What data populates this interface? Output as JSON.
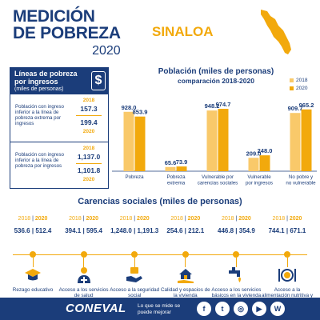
{
  "header": {
    "brand_line1": "MEDICIÓN",
    "brand_line2": "DE POBREZA",
    "brand_year": "2020",
    "state": "SINALOA"
  },
  "poverty_lines": {
    "title": "Líneas de pobreza por ingresos",
    "subtitle": "(miles de personas)",
    "rows": [
      {
        "label": "Población con ingreso inferior a la línea de pobreza extrema por ingresos",
        "year_2018": "2018",
        "value_2018": "157.3",
        "value_2020": "199.4",
        "year_2020": "2020"
      },
      {
        "label": "Población con ingreso inferior a la línea de pobreza por ingresos",
        "year_2018": "2018",
        "value_2018": "1,137.0",
        "value_2020": "1,101.8",
        "year_2020": "2020"
      }
    ]
  },
  "colors": {
    "navy": "#1b3d7a",
    "series_2018": "#f9c96a",
    "series_2020": "#f2a90c"
  },
  "chart_data": {
    "type": "bar",
    "title": "Población (miles de personas)",
    "subtitle": "comparación 2018-2020",
    "categories": [
      "Pobreza",
      "Pobreza extrema",
      "Vulnerable por carencias sociales",
      "Vulnerable por ingresos",
      "No pobre y no vulnerable"
    ],
    "category_lines": [
      [
        "Pobreza"
      ],
      [
        "Pobreza",
        "extrema"
      ],
      [
        "Vulnerable por",
        "carencias sociales"
      ],
      [
        "Vulnerable",
        "por ingresos"
      ],
      [
        "No pobre y",
        "no vulnerable"
      ]
    ],
    "series": [
      {
        "name": "2018",
        "values": [
          928.0,
          65.6,
          948.2,
          209.0,
          909.7
        ]
      },
      {
        "name": "2020",
        "values": [
          853.9,
          73.9,
          974.7,
          248.0,
          965.2
        ]
      }
    ],
    "value_labels": {
      "2018": [
        "928.0",
        "65.6",
        "948.2",
        "209.0",
        "909.7"
      ],
      "2020": [
        "853.9",
        "73.9",
        "974.7",
        "248.0",
        "965.2"
      ]
    },
    "ylim": [
      0,
      1000
    ],
    "grid": false,
    "legend": "top-right"
  },
  "social": {
    "title": "Carencias sociales (miles de personas)",
    "year_2018": "2018",
    "year_2020": "2020",
    "separator": "|",
    "items": [
      {
        "icon": "graduation-cap-icon",
        "label": "Rezago educativo",
        "value_2018": "536.6",
        "value_2020": "512.4"
      },
      {
        "icon": "doctor-icon",
        "label": "Acceso a los servicios de salud",
        "value_2018": "394.1",
        "value_2020": "595.4"
      },
      {
        "icon": "hand-money-icon",
        "label": "Acceso a la seguridad social",
        "value_2018": "1,248.0",
        "value_2020": "1,191.3"
      },
      {
        "icon": "house-hand-icon",
        "label": "Calidad y espacios de la vivienda",
        "value_2018": "254.6",
        "value_2020": "212.1"
      },
      {
        "icon": "faucet-icon",
        "label": "Acceso a los servicios básicos en la vivienda",
        "value_2018": "446.8",
        "value_2020": "354.9"
      },
      {
        "icon": "plate-cutlery-icon",
        "label": "Acceso a la alimentación nutritiva y de calidad",
        "value_2018": "744.1",
        "value_2020": "671.1"
      }
    ]
  },
  "footer": {
    "logo": "CONEVAL",
    "tagline": "Lo que se mide se puede mejorar",
    "links": [
      {
        "icon": "facebook-icon",
        "glyph": "f"
      },
      {
        "icon": "twitter-icon",
        "glyph": "t"
      },
      {
        "icon": "instagram-icon",
        "glyph": "◎"
      },
      {
        "icon": "youtube-icon",
        "glyph": "▶"
      },
      {
        "icon": "wordpress-icon",
        "glyph": "W"
      }
    ]
  }
}
